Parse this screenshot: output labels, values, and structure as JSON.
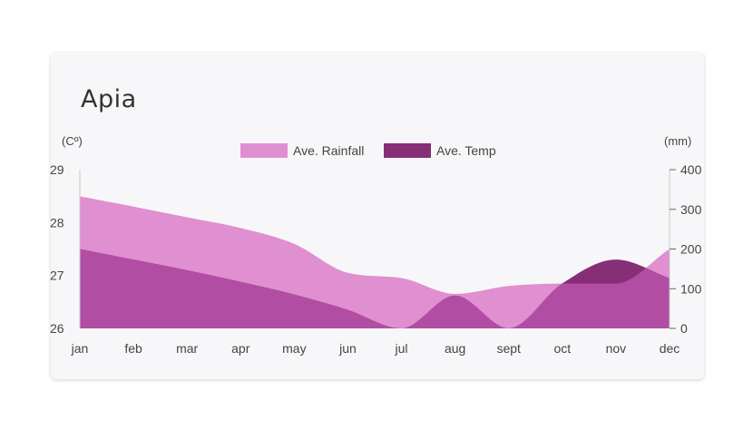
{
  "card": {
    "title": "Apia"
  },
  "chart_data": {
    "type": "area",
    "title": "Apia",
    "categories": [
      "jan",
      "feb",
      "mar",
      "apr",
      "may",
      "jun",
      "jul",
      "aug",
      "sept",
      "oct",
      "nov",
      "dec"
    ],
    "left_axis": {
      "unit_label": "(Cº)",
      "range": [
        26,
        29
      ],
      "ticks": [
        26,
        27,
        28,
        29
      ]
    },
    "right_axis": {
      "unit_label": "(mm)",
      "range": [
        0,
        400
      ],
      "ticks": [
        0,
        100,
        200,
        300,
        400
      ]
    },
    "legend": {
      "placement": "top-center"
    },
    "series": [
      {
        "name": "Ave. Rainfall",
        "axis": "right",
        "color": "#e08fd0",
        "values": [
          333,
          307,
          280,
          253,
          213,
          140,
          127,
          87,
          107,
          113,
          113,
          200
        ]
      },
      {
        "name": "Ave. Temp",
        "axis": "left",
        "color": "#862e76",
        "values": [
          27.5,
          27.3,
          27.1,
          26.88,
          26.64,
          26.35,
          26.0,
          26.62,
          26.0,
          26.85,
          27.3,
          26.95
        ]
      }
    ],
    "overlap_color": "#b14ea3",
    "grid": false
  }
}
